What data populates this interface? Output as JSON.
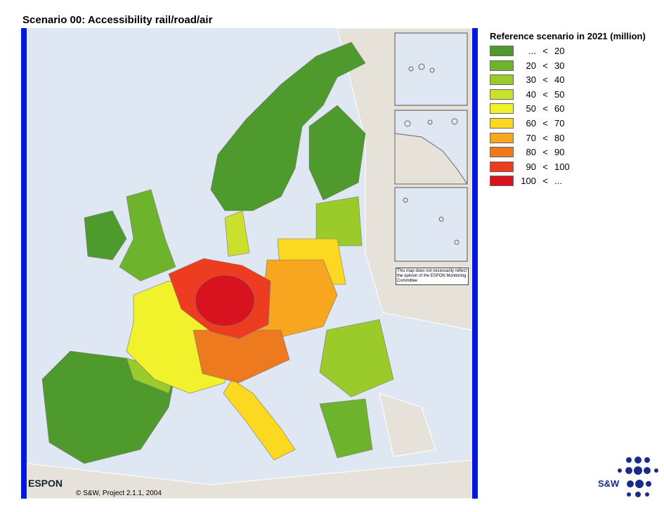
{
  "title": "Scenario 00: Accessibility rail/road/air",
  "legend": {
    "title": "Reference scenario in 2021 (million)",
    "items": [
      {
        "color": "#4f9a2c",
        "from": "...",
        "sign": "<",
        "to": 20
      },
      {
        "color": "#6db42c",
        "from": 20,
        "sign": "<",
        "to": 30
      },
      {
        "color": "#9acb2a",
        "from": 30,
        "sign": "<",
        "to": 40
      },
      {
        "color": "#cbe02c",
        "from": 40,
        "sign": "<",
        "to": 50
      },
      {
        "color": "#f2f22c",
        "from": 50,
        "sign": "<",
        "to": 60
      },
      {
        "color": "#fcd820",
        "from": 60,
        "sign": "<",
        "to": 70
      },
      {
        "color": "#f8a520",
        "from": 70,
        "sign": "<",
        "to": 80
      },
      {
        "color": "#ee7a20",
        "from": 80,
        "sign": "<",
        "to": 90
      },
      {
        "color": "#ee3c20",
        "from": 90,
        "sign": "<",
        "to": 100
      },
      {
        "color": "#d8121e",
        "from": 100,
        "sign": "<",
        "to": "..."
      }
    ]
  },
  "map_note": "This map does not necessarily reflect the opinion of the ESPON Monitoring Committee",
  "logo": "ESPON",
  "copyright": "© S&W, Project 2.1.1, 2004",
  "brand": "S&W"
}
